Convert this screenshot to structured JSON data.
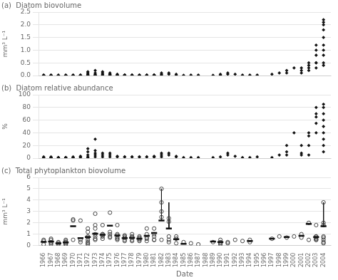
{
  "chart_data": [
    {
      "type": "scatter",
      "title": "(a)  Diatom biovolume",
      "ylabel": "mm³ L⁻¹",
      "x": [
        1966,
        1966,
        1966,
        1967,
        1967,
        1967,
        1967,
        1968,
        1968,
        1968,
        1969,
        1969,
        1969,
        1969,
        1970,
        1970,
        1970,
        1971,
        1971,
        1971,
        1972,
        1972,
        1972,
        1972,
        1972,
        1973,
        1973,
        1973,
        1973,
        1973,
        1973,
        1974,
        1974,
        1974,
        1974,
        1975,
        1975,
        1975,
        1975,
        1975,
        1976,
        1976,
        1976,
        1976,
        1977,
        1977,
        1977,
        1977,
        1978,
        1978,
        1978,
        1979,
        1979,
        1979,
        1980,
        1980,
        1980,
        1981,
        1981,
        1981,
        1981,
        1982,
        1982,
        1982,
        1983,
        1983,
        1984,
        1984,
        1985,
        1986,
        1987,
        1989,
        1990,
        1990,
        1991,
        1991,
        1992,
        1993,
        1994,
        1995,
        1997,
        1998,
        1999,
        1999,
        2000,
        2001,
        2001,
        2001,
        2002,
        2002,
        2002,
        2002,
        2003,
        2003,
        2003,
        2003,
        2003,
        2003,
        2004,
        2004,
        2004,
        2004,
        2004,
        2004,
        2004,
        2004,
        2004,
        2004
      ],
      "values": [
        0.02,
        0.01,
        0.01,
        0.01,
        0.01,
        0.02,
        0.01,
        0.01,
        0.01,
        0.01,
        0.01,
        0.01,
        0.01,
        0.01,
        0.02,
        0.01,
        0.01,
        0.01,
        0.02,
        0.01,
        0.05,
        0.1,
        0.15,
        0.02,
        0.01,
        0.05,
        0.1,
        0.2,
        0.02,
        0.01,
        0.01,
        0.05,
        0.1,
        0.15,
        0.02,
        0.05,
        0.1,
        0.05,
        0.02,
        0.01,
        0.02,
        0.05,
        0.02,
        0.01,
        0.02,
        0.02,
        0.02,
        0.01,
        0.02,
        0.02,
        0.01,
        0.02,
        0.02,
        0.01,
        0.02,
        0.02,
        0.01,
        0.02,
        0.02,
        0.02,
        0.01,
        0.1,
        0.05,
        0.02,
        0.05,
        0.1,
        0.05,
        0.02,
        0.01,
        0.02,
        0.02,
        0.01,
        0.02,
        0.05,
        0.05,
        0.1,
        0.05,
        0.02,
        0.02,
        0.02,
        0.05,
        0.1,
        0.1,
        0.2,
        0.3,
        0.1,
        0.2,
        0.3,
        0.2,
        0.3,
        0.4,
        0.5,
        0.5,
        0.8,
        1.0,
        1.2,
        0.3,
        0.5,
        0.5,
        1.0,
        1.2,
        1.5,
        1.8,
        2.0,
        2.1,
        2.2,
        0.8,
        0.4
      ],
      "color": "#111111",
      "marker": "diamond",
      "xlim": [
        1965.3,
        2005.0
      ],
      "xticks": [
        1966,
        1967,
        1968,
        1969,
        1970,
        1971,
        1972,
        1973,
        1974,
        1975,
        1976,
        1977,
        1978,
        1979,
        1980,
        1981,
        1982,
        1983,
        1984,
        1985,
        1986,
        1987,
        1988,
        1989,
        1990,
        1991,
        1992,
        1993,
        1994,
        1995,
        1996,
        1997,
        1998,
        1999,
        2000,
        2001,
        2002,
        2003,
        2004
      ],
      "ylim": [
        0,
        2.5
      ],
      "yticks": [
        {
          "value": 0,
          "label": "0.0"
        },
        0.5,
        {
          "value": 1,
          "label": "1.0"
        },
        1.5,
        {
          "value": 2,
          "label": "2.0"
        },
        2.5
      ],
      "grid": "y",
      "tick_labels": "y"
    },
    {
      "type": "scatter",
      "title": "(b)  Diatom relative abundance",
      "ylabel": "%",
      "x": [
        1966,
        1966,
        1966,
        1967,
        1967,
        1967,
        1967,
        1968,
        1968,
        1968,
        1969,
        1969,
        1969,
        1970,
        1970,
        1970,
        1971,
        1971,
        1971,
        1972,
        1972,
        1972,
        1972,
        1972,
        1973,
        1973,
        1973,
        1973,
        1973,
        1974,
        1974,
        1974,
        1975,
        1975,
        1975,
        1976,
        1976,
        1977,
        1977,
        1978,
        1978,
        1979,
        1979,
        1980,
        1980,
        1981,
        1981,
        1981,
        1982,
        1982,
        1982,
        1983,
        1983,
        1984,
        1984,
        1985,
        1986,
        1987,
        1989,
        1990,
        1991,
        1991,
        1992,
        1993,
        1994,
        1995,
        1997,
        1998,
        1999,
        1999,
        1999,
        2000,
        2001,
        2001,
        2001,
        2002,
        2002,
        2002,
        2002,
        2003,
        2003,
        2003,
        2003,
        2003,
        2004,
        2004,
        2004,
        2004,
        2004,
        2004,
        2004,
        2004,
        2004
      ],
      "values": [
        1,
        2,
        1,
        1,
        1,
        2,
        1,
        1,
        1,
        1,
        1,
        1,
        1,
        2,
        1,
        1,
        2,
        3,
        1,
        5,
        10,
        15,
        2,
        1,
        5,
        8,
        12,
        30,
        2,
        5,
        8,
        2,
        5,
        8,
        2,
        2,
        3,
        2,
        2,
        2,
        2,
        2,
        2,
        2,
        2,
        2,
        3,
        2,
        5,
        8,
        2,
        5,
        8,
        2,
        3,
        1,
        1,
        1,
        1,
        2,
        5,
        8,
        3,
        1,
        1,
        2,
        1,
        5,
        5,
        10,
        20,
        40,
        5,
        8,
        20,
        20,
        35,
        40,
        5,
        40,
        55,
        65,
        70,
        80,
        60,
        70,
        80,
        85,
        40,
        50,
        30,
        20,
        10
      ],
      "color": "#111111",
      "marker": "diamond",
      "xlim": [
        1965.3,
        2005.0
      ],
      "xticks": [
        1966,
        1967,
        1968,
        1969,
        1970,
        1971,
        1972,
        1973,
        1974,
        1975,
        1976,
        1977,
        1978,
        1979,
        1980,
        1981,
        1982,
        1983,
        1984,
        1985,
        1986,
        1987,
        1988,
        1989,
        1990,
        1991,
        1992,
        1993,
        1994,
        1995,
        1996,
        1997,
        1998,
        1999,
        2000,
        2001,
        2002,
        2003,
        2004
      ],
      "ylim": [
        0,
        100
      ],
      "yticks": [
        0,
        20,
        40,
        60,
        80,
        100
      ],
      "grid": "y",
      "tick_labels": "y"
    },
    {
      "type": "scatter",
      "title": "(c)  Total phytoplankton biovolume",
      "ylabel": "mm³ L⁻¹",
      "xlabel": "Date",
      "x": [
        1966,
        1966,
        1966,
        1967,
        1967,
        1967,
        1967,
        1967,
        1968,
        1968,
        1968,
        1969,
        1969,
        1969,
        1969,
        1969,
        1969,
        1970,
        1970,
        1970,
        1971,
        1971,
        1971,
        1972,
        1972,
        1972,
        1972,
        1972,
        1972,
        1972,
        1972,
        1973,
        1973,
        1973,
        1973,
        1973,
        1973,
        1973,
        1974,
        1974,
        1974,
        1974,
        1974,
        1974,
        1975,
        1975,
        1975,
        1975,
        1975,
        1976,
        1976,
        1976,
        1976,
        1976,
        1976,
        1977,
        1977,
        1977,
        1977,
        1977,
        1978,
        1978,
        1978,
        1978,
        1978,
        1979,
        1979,
        1979,
        1979,
        1979,
        1980,
        1980,
        1980,
        1980,
        1980,
        1981,
        1981,
        1981,
        1981,
        1981,
        1982,
        1982,
        1982,
        1982,
        1982,
        1983,
        1983,
        1983,
        1983,
        1983,
        1984,
        1984,
        1984,
        1985,
        1986,
        1987,
        1989,
        1990,
        1990,
        1990,
        1990,
        1991,
        1991,
        1992,
        1993,
        1994,
        1994,
        1997,
        1998,
        1999,
        2000,
        2001,
        2001,
        2002,
        2002,
        2003,
        2003,
        2003,
        2003,
        2003,
        2003,
        2003,
        2004,
        2004,
        2004,
        2004,
        2004,
        2004,
        2004,
        2004
      ],
      "values": [
        0.5,
        0.4,
        0.1,
        0.2,
        0.5,
        0.3,
        0.1,
        0.6,
        0.3,
        0.2,
        0.1,
        0.1,
        0.3,
        0.2,
        0.4,
        0.1,
        0.5,
        2.3,
        2.2,
        0.5,
        2.2,
        0.5,
        0.3,
        1.5,
        0.8,
        0.7,
        0.5,
        1.2,
        0.3,
        0.2,
        0.1,
        1.0,
        0.8,
        0.6,
        1.8,
        1.5,
        2.8,
        0.5,
        0.9,
        0.8,
        1.0,
        0.6,
        1.8,
        1.0,
        0.8,
        1.2,
        2.9,
        1.0,
        0.7,
        0.9,
        1.8,
        0.7,
        0.5,
        1.0,
        0.6,
        0.9,
        0.8,
        0.5,
        0.7,
        0.4,
        0.8,
        1.0,
        0.5,
        0.7,
        0.4,
        0.6,
        0.8,
        0.5,
        0.7,
        0.4,
        0.7,
        1.5,
        1.0,
        0.6,
        0.4,
        1.5,
        0.8,
        0.5,
        1.0,
        0.5,
        5.0,
        3.8,
        3.0,
        2.5,
        0.5,
        0.8,
        2.1,
        2.4,
        0.5,
        0.3,
        0.2,
        0.6,
        0.8,
        0.3,
        0.2,
        0.1,
        0.3,
        0.5,
        0.3,
        0.1,
        0.2,
        0.3,
        0.2,
        0.5,
        0.4,
        0.3,
        0.5,
        0.6,
        0.8,
        0.7,
        0.8,
        1.0,
        0.7,
        0.5,
        2.0,
        1.8,
        0.6,
        0.5,
        0.8,
        0.8,
        0.7,
        0.5,
        3.8,
        2.0,
        1.8,
        0.8,
        0.7,
        0.5,
        0.3,
        0.2
      ],
      "color": "#444444",
      "marker": "circle",
      "means": {
        "x": [
          1966,
          1967,
          1968,
          1969,
          1970,
          1971,
          1972,
          1973,
          1974,
          1975,
          1976,
          1977,
          1978,
          1979,
          1980,
          1981,
          1982,
          1983,
          1984,
          1985,
          1989,
          1990,
          1994,
          1997,
          1999,
          2001,
          2002,
          2003,
          2004
        ],
        "values": [
          0.33,
          0.35,
          0.2,
          0.27,
          1.7,
          0.65,
          0.75,
          1.05,
          0.95,
          1.75,
          0.88,
          0.65,
          0.68,
          0.6,
          0.85,
          1.1,
          2.2,
          1.5,
          0.55,
          0.15,
          0.35,
          0.3,
          0.4,
          0.6,
          0.75,
          0.85,
          1.9,
          0.75,
          1.7
        ],
        "color": "#111111"
      },
      "spike_lines": [
        [
          1982,
          5.0,
          2.2
        ],
        [
          1983,
          3.8,
          1.5
        ],
        [
          1983,
          2.4,
          1.5
        ],
        [
          2004,
          3.8,
          1.7
        ]
      ],
      "xlim": [
        1965.3,
        2005.0
      ],
      "xticks": [
        1966,
        1967,
        1968,
        1969,
        1970,
        1971,
        1972,
        1973,
        1974,
        1975,
        1976,
        1977,
        1978,
        1979,
        1980,
        1981,
        1982,
        1983,
        1984,
        1985,
        1986,
        1987,
        1988,
        1989,
        1990,
        1991,
        1992,
        1993,
        1994,
        1995,
        1996,
        1997,
        1998,
        1999,
        2000,
        2001,
        2002,
        2003,
        2004
      ],
      "ylim": [
        0,
        6
      ],
      "yticks": [
        0,
        1,
        2,
        3,
        4,
        5,
        6
      ],
      "grid": "y",
      "tick_labels": true
    }
  ]
}
